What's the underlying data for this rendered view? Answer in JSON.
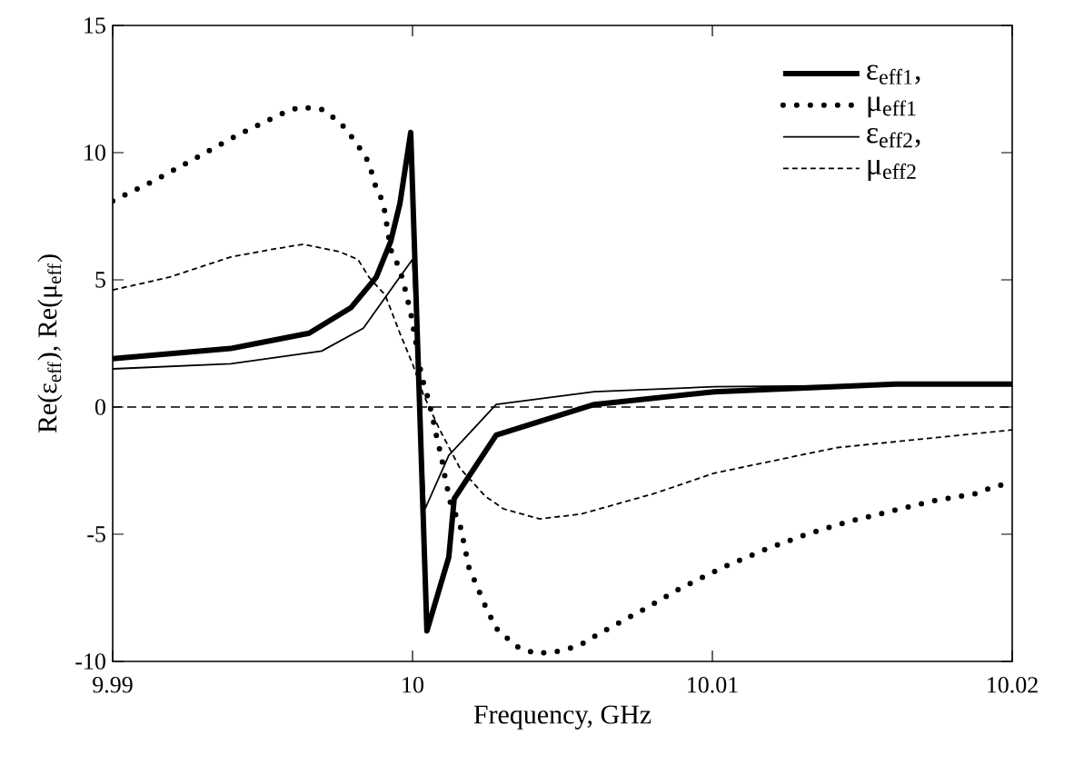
{
  "chart_data": {
    "type": "line",
    "xlabel": "Frequency, GHz",
    "ylabel": "Re(ε$_{eff}$), Re(μ$_{eff}$)",
    "xlim": [
      9.99,
      10.02
    ],
    "xticks": [
      9.99,
      10,
      10.01,
      10.02
    ],
    "ylim": [
      -10,
      15
    ],
    "yticks": [
      -10,
      -5,
      0,
      5,
      10,
      15
    ],
    "legend": "top right",
    "ref_lines": [
      {
        "axis": "y",
        "value": 0,
        "color": "#000000",
        "line_style": "dashed"
      }
    ],
    "series": [
      {
        "name": "ε$_{eff1}$,",
        "color": "#000000",
        "line_style": "solid",
        "x": [
          9.99,
          9.99394,
          9.99655,
          9.99794,
          9.99879,
          9.99927,
          9.99958,
          9.99994,
          10.00048,
          10.00121,
          10.00139,
          10.00279,
          10.00606,
          10.01006,
          10.01612,
          10.02
        ],
        "values": [
          1.9,
          2.3,
          2.9,
          3.9,
          5.1,
          6.5,
          8.0,
          10.8,
          -8.8,
          -5.9,
          -3.6,
          -1.1,
          0.1,
          0.6,
          0.9,
          0.9
        ]
      },
      {
        "name": "μ$_{eff1}$",
        "color": "#000000",
        "line_style": "dotted",
        "x": [
          9.99,
          9.99139,
          9.99279,
          9.99418,
          9.99558,
          9.99624,
          9.99697,
          9.99758,
          9.99812,
          9.99855,
          9.99873,
          9.99903,
          9.99927,
          9.99958,
          9.99976,
          9.99994,
          10.00006,
          10.0003,
          10.00048,
          10.00067,
          10.00079,
          10.00097,
          10.00109,
          10.00127,
          10.00158,
          10.00188,
          10.00242,
          10.00279,
          10.00345,
          10.00412,
          10.00485,
          10.00552,
          10.00624,
          10.00764,
          10.00897,
          10.01036,
          10.01176,
          10.01315,
          10.01455,
          10.01594,
          10.01733,
          10.01879,
          10.01945,
          10.02
        ],
        "values": [
          8.1,
          8.9,
          9.8,
          10.7,
          11.5,
          11.8,
          11.7,
          11.2,
          10.4,
          9.6,
          8.8,
          8.0,
          6.2,
          5.4,
          4.6,
          3.7,
          2.9,
          1.2,
          0.5,
          -0.4,
          -1.1,
          -2.0,
          -2.8,
          -3.8,
          -4.6,
          -6.3,
          -7.8,
          -8.7,
          -9.4,
          -9.7,
          -9.6,
          -9.4,
          -8.9,
          -8.0,
          -7.1,
          -6.3,
          -5.6,
          -5.0,
          -4.5,
          -4.1,
          -3.7,
          -3.4,
          -3.1,
          -3.0
        ]
      },
      {
        "name": "ε$_{eff2}$,",
        "color": "#000000",
        "line_style": "solid",
        "x": [
          9.99,
          9.99394,
          9.99697,
          9.99836,
          9.99939,
          10.0,
          10.00042,
          10.00121,
          10.00279,
          10.00606,
          10.01006,
          10.02
        ],
        "values": [
          1.5,
          1.7,
          2.2,
          3.1,
          4.8,
          5.8,
          -4.0,
          -1.9,
          0.1,
          0.6,
          0.8,
          0.9
        ]
      },
      {
        "name": "μ$_{eff2}$",
        "color": "#000000",
        "line_style": "dashed",
        "x": [
          9.99,
          9.99188,
          9.99394,
          9.99533,
          9.99636,
          9.99758,
          9.99818,
          9.99855,
          9.99909,
          9.99958,
          10.0,
          10.00036,
          10.00091,
          10.00158,
          10.00242,
          10.00303,
          10.00424,
          10.00564,
          10.00806,
          10.01006,
          10.01412,
          10.02
        ],
        "values": [
          4.6,
          5.1,
          5.9,
          6.2,
          6.4,
          6.1,
          5.8,
          5.1,
          4.4,
          2.9,
          1.7,
          0.5,
          -0.9,
          -2.4,
          -3.5,
          -4.0,
          -4.4,
          -4.2,
          -3.4,
          -2.6,
          -1.6,
          -0.9
        ]
      }
    ]
  }
}
